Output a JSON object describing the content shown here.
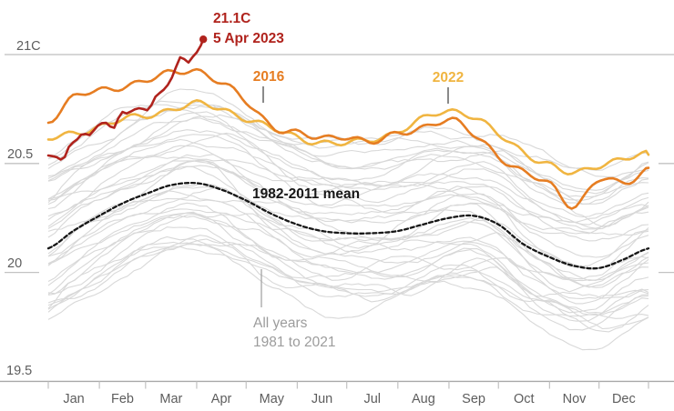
{
  "page": {
    "background": "#ffffff"
  },
  "colors": {
    "red": "#b0231d",
    "orange": "#e67d22",
    "yellow": "#f0b541",
    "mean_line": "#161616",
    "gray_lines": "#d8d8d8",
    "axis_text": "#5d5d5d",
    "muted_label": "#9c9c9c",
    "gridline": "#c9c9c9",
    "axis_line": "#a8a8a8",
    "tick": "#c2c2c2",
    "pointer_dark": "#3c3c3c"
  },
  "annotations": {
    "peak_value": "21.1C",
    "peak_date": "5 Apr 2023",
    "label_2016": "2016",
    "label_2022": "2022",
    "label_mean": "1982-2011 mean",
    "label_all_years_1": "All years",
    "label_all_years_2": "1981 to 2021"
  },
  "chart_data": {
    "type": "line",
    "y_range": [
      19.5,
      21.1
    ],
    "grid": "partial",
    "y_axis": {
      "ticks": [
        {
          "label": "21C",
          "value": 21,
          "line": "full"
        },
        {
          "label": "20.5",
          "value": 20.5,
          "line": "stub"
        },
        {
          "label": "20",
          "value": 20,
          "line": "stub"
        },
        {
          "label": "19.5",
          "value": 19.5,
          "line": "axis"
        }
      ]
    },
    "x_axis": {
      "unit": "day_of_year",
      "month_starts": [
        0,
        31,
        59,
        90,
        120,
        151,
        181,
        212,
        243,
        273,
        304,
        334,
        364
      ],
      "month_labels": [
        "Jan",
        "Feb",
        "Mar",
        "Apr",
        "May",
        "Jun",
        "Jul",
        "Aug",
        "Sep",
        "Oct",
        "Nov",
        "Dec"
      ]
    },
    "series": [
      {
        "name": "1982-2011 mean",
        "style": "dashed",
        "color": "#161616",
        "days": [
          0,
          15,
          31,
          46,
          59,
          74,
          90,
          105,
          120,
          135,
          151,
          166,
          181,
          196,
          212,
          227,
          243,
          258,
          273,
          288,
          304,
          319,
          334,
          349,
          364
        ],
        "values": [
          20.11,
          20.19,
          20.26,
          20.32,
          20.36,
          20.4,
          20.41,
          20.38,
          20.33,
          20.27,
          20.22,
          20.19,
          20.18,
          20.18,
          20.19,
          20.22,
          20.25,
          20.26,
          20.22,
          20.13,
          20.07,
          20.03,
          20.02,
          20.06,
          20.11
        ]
      },
      {
        "name": "2022",
        "style": "solid",
        "color": "#f0b541",
        "days": [
          0,
          15,
          31,
          46,
          59,
          74,
          90,
          105,
          120,
          135,
          151,
          166,
          181,
          196,
          212,
          227,
          243,
          258,
          273,
          288,
          304,
          319,
          334,
          349,
          364
        ],
        "values": [
          20.61,
          20.64,
          20.67,
          20.7,
          20.72,
          20.75,
          20.77,
          20.75,
          20.71,
          20.66,
          20.62,
          20.6,
          20.59,
          20.61,
          20.65,
          20.7,
          20.74,
          20.72,
          20.63,
          20.55,
          20.5,
          20.45,
          20.49,
          20.53,
          20.54
        ]
      },
      {
        "name": "2016",
        "style": "solid",
        "color": "#e67d22",
        "days": [
          0,
          15,
          31,
          46,
          59,
          74,
          90,
          105,
          120,
          135,
          151,
          166,
          181,
          196,
          212,
          227,
          243,
          258,
          273,
          288,
          304,
          319,
          334,
          349,
          364
        ],
        "values": [
          20.7,
          20.8,
          20.83,
          20.86,
          20.88,
          20.91,
          20.93,
          20.87,
          20.78,
          20.68,
          20.64,
          20.61,
          20.63,
          20.6,
          20.63,
          20.67,
          20.7,
          20.63,
          20.54,
          20.46,
          20.4,
          20.31,
          20.43,
          20.4,
          20.48
        ]
      },
      {
        "name": "2023",
        "style": "solid",
        "color": "#b0231d",
        "end_dot": true,
        "peak_label": [
          "21.1C",
          "5 Apr 2023"
        ],
        "days": [
          0,
          4,
          9,
          13,
          17,
          21,
          25,
          31,
          35,
          40,
          44,
          48,
          52,
          56,
          61,
          65,
          69,
          73,
          76,
          78,
          81,
          84,
          87,
          90,
          92,
          94
        ],
        "values": [
          20.54,
          20.52,
          20.5,
          20.58,
          20.62,
          20.65,
          20.63,
          20.68,
          20.7,
          20.67,
          20.72,
          20.71,
          20.74,
          20.76,
          20.75,
          20.8,
          20.83,
          20.88,
          20.93,
          20.97,
          21.0,
          20.95,
          20.97,
          21.0,
          21.03,
          21.07
        ]
      }
    ],
    "all_years_ensemble": {
      "label": "All years 1981 to 2021",
      "count": 38,
      "seed": 2023,
      "color": "#d8d8d8",
      "offset_min": -0.33,
      "offset_max": 0.4
    }
  }
}
